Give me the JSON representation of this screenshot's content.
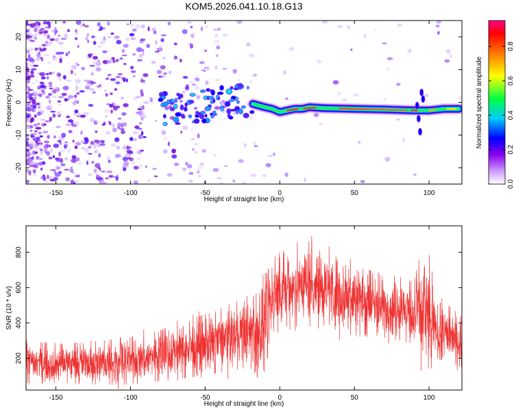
{
  "title": "KOM5.2026.041.10.18.G13",
  "chart_data": [
    {
      "type": "heatmap",
      "name": "spectrogram",
      "xlabel": "Height of straight line (km)",
      "ylabel": "Frequency (Hz)",
      "xlim": [
        -170,
        122
      ],
      "ylim": [
        -25,
        25
      ],
      "xticks": [
        -150,
        -100,
        -50,
        0,
        50,
        100
      ],
      "yticks": [
        -20,
        -10,
        0,
        10,
        20
      ],
      "colorbar": {
        "label": "Normalized spectral amplitude",
        "range": [
          0,
          0.95
        ],
        "ticks": [
          0.0,
          0.2,
          0.4,
          0.6,
          0.8
        ]
      },
      "signal_track": {
        "description_free": true,
        "points": [
          {
            "x": -18,
            "f": -0.5
          },
          {
            "x": -10,
            "f": -1.5
          },
          {
            "x": -5,
            "f": -2.0
          },
          {
            "x": 0,
            "f": -3.0
          },
          {
            "x": 5,
            "f": -2.5
          },
          {
            "x": 10,
            "f": -2.0
          },
          {
            "x": 15,
            "f": -2.0
          },
          {
            "x": 20,
            "f": -1.5
          },
          {
            "x": 30,
            "f": -1.8
          },
          {
            "x": 50,
            "f": -2.0
          },
          {
            "x": 70,
            "f": -2.2
          },
          {
            "x": 90,
            "f": -2.5
          },
          {
            "x": 95,
            "f": -2.5
          },
          {
            "x": 100,
            "f": -2.5
          },
          {
            "x": 110,
            "f": -2.0
          },
          {
            "x": 120,
            "f": -2.0
          }
        ]
      }
    },
    {
      "type": "line",
      "name": "snr",
      "xlabel": "Height of straight line (km)",
      "ylabel": "SNR (10 * v/v)",
      "xlim": [
        -170,
        122
      ],
      "ylim": [
        20,
        950
      ],
      "xticks": [
        -150,
        -100,
        -50,
        0,
        50,
        100
      ],
      "yticks": [
        200,
        400,
        600,
        800
      ],
      "series": [
        {
          "name": "SNR",
          "color": "#ee3333",
          "envelope": [
            {
              "x": -170,
              "low": 60,
              "high": 300
            },
            {
              "x": -150,
              "low": 60,
              "high": 280
            },
            {
              "x": -120,
              "low": 50,
              "high": 300
            },
            {
              "x": -100,
              "low": 50,
              "high": 320
            },
            {
              "x": -80,
              "low": 70,
              "high": 360
            },
            {
              "x": -60,
              "low": 90,
              "high": 420
            },
            {
              "x": -40,
              "low": 120,
              "high": 480
            },
            {
              "x": -20,
              "low": 150,
              "high": 560
            },
            {
              "x": -12,
              "low": 60,
              "high": 620
            },
            {
              "x": -5,
              "low": 320,
              "high": 780
            },
            {
              "x": 5,
              "low": 380,
              "high": 820
            },
            {
              "x": 20,
              "low": 380,
              "high": 900
            },
            {
              "x": 40,
              "low": 340,
              "high": 800
            },
            {
              "x": 60,
              "low": 320,
              "high": 700
            },
            {
              "x": 80,
              "low": 300,
              "high": 660
            },
            {
              "x": 90,
              "low": 280,
              "high": 640
            },
            {
              "x": 97,
              "low": 60,
              "high": 900
            },
            {
              "x": 105,
              "low": 200,
              "high": 520
            },
            {
              "x": 122,
              "low": 150,
              "high": 470
            }
          ]
        }
      ]
    }
  ]
}
